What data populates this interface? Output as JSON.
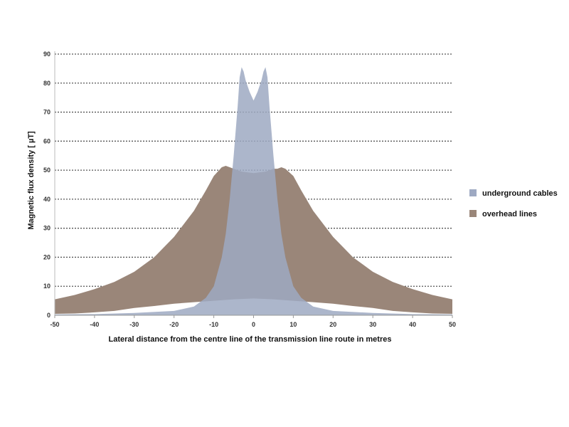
{
  "chart_data": {
    "type": "area",
    "title": "",
    "xlabel": "Lateral distance from the centre line of the transmission  line route in metres",
    "ylabel": "Magnetic flux density [ µT]",
    "xlim": [
      -50,
      50
    ],
    "ylim": [
      0,
      90
    ],
    "x_ticks": [
      "-50",
      "-40",
      "-30",
      "-20",
      "-10",
      "0",
      "10",
      "20",
      "30",
      "40",
      "50"
    ],
    "y_ticks": [
      "0",
      "10",
      "20",
      "30",
      "40",
      "50",
      "60",
      "70",
      "80",
      "90"
    ],
    "grid": "horizontal dotted",
    "legend_position": "right",
    "series": [
      {
        "name": "underground cables",
        "color": "#9ea9c2",
        "upper": [
          [
            -50,
            0.3
          ],
          [
            -40,
            0.4
          ],
          [
            -30,
            0.8
          ],
          [
            -20,
            1.5
          ],
          [
            -15,
            3
          ],
          [
            -12,
            6
          ],
          [
            -10,
            10
          ],
          [
            -9,
            15
          ],
          [
            -8,
            20
          ],
          [
            -7,
            28
          ],
          [
            -6,
            40
          ],
          [
            -5,
            55
          ],
          [
            -4,
            72
          ],
          [
            -3.5,
            82
          ],
          [
            -3,
            85.5
          ],
          [
            -2.5,
            84
          ],
          [
            -2,
            81
          ],
          [
            -1,
            77
          ],
          [
            0,
            74
          ],
          [
            1,
            77
          ],
          [
            2,
            81
          ],
          [
            2.5,
            84
          ],
          [
            3,
            85.5
          ],
          [
            3.5,
            82
          ],
          [
            4,
            72
          ],
          [
            5,
            55
          ],
          [
            6,
            40
          ],
          [
            7,
            28
          ],
          [
            8,
            20
          ],
          [
            9,
            15
          ],
          [
            10,
            10
          ],
          [
            12,
            6
          ],
          [
            15,
            3
          ],
          [
            20,
            1.5
          ],
          [
            30,
            0.8
          ],
          [
            40,
            0.4
          ],
          [
            50,
            0.3
          ]
        ],
        "lower": [
          [
            -50,
            0
          ],
          [
            50,
            0
          ]
        ]
      },
      {
        "name": "overhead lines",
        "color": "#9a8679",
        "upper": [
          [
            -50,
            5.5
          ],
          [
            -45,
            7
          ],
          [
            -40,
            9
          ],
          [
            -35,
            11.5
          ],
          [
            -30,
            15
          ],
          [
            -25,
            20
          ],
          [
            -20,
            27
          ],
          [
            -15,
            36
          ],
          [
            -12,
            43
          ],
          [
            -10,
            48
          ],
          [
            -8,
            51
          ],
          [
            -7,
            51.5
          ],
          [
            -6,
            51
          ],
          [
            -5,
            50.5
          ],
          [
            -3,
            49.5
          ],
          [
            0,
            49
          ],
          [
            3,
            49.5
          ],
          [
            5,
            50.5
          ],
          [
            6,
            50.5
          ],
          [
            7,
            51
          ],
          [
            8,
            50.5
          ],
          [
            10,
            48
          ],
          [
            12,
            43
          ],
          [
            15,
            36
          ],
          [
            20,
            27
          ],
          [
            25,
            20
          ],
          [
            30,
            15
          ],
          [
            35,
            11.5
          ],
          [
            40,
            9
          ],
          [
            45,
            7
          ],
          [
            50,
            5.5
          ]
        ],
        "lower": [
          [
            -50,
            0.5
          ],
          [
            -45,
            0.6
          ],
          [
            -40,
            1
          ],
          [
            -35,
            1.5
          ],
          [
            -30,
            2.5
          ],
          [
            -25,
            3.2
          ],
          [
            -20,
            4
          ],
          [
            -15,
            4.5
          ],
          [
            -10,
            5
          ],
          [
            -5,
            5.5
          ],
          [
            0,
            5.8
          ],
          [
            5,
            5.5
          ],
          [
            10,
            5
          ],
          [
            15,
            4.5
          ],
          [
            20,
            4
          ],
          [
            25,
            3.2
          ],
          [
            30,
            2.5
          ],
          [
            35,
            1.5
          ],
          [
            40,
            1
          ],
          [
            45,
            0.6
          ],
          [
            50,
            0.5
          ]
        ]
      }
    ]
  }
}
